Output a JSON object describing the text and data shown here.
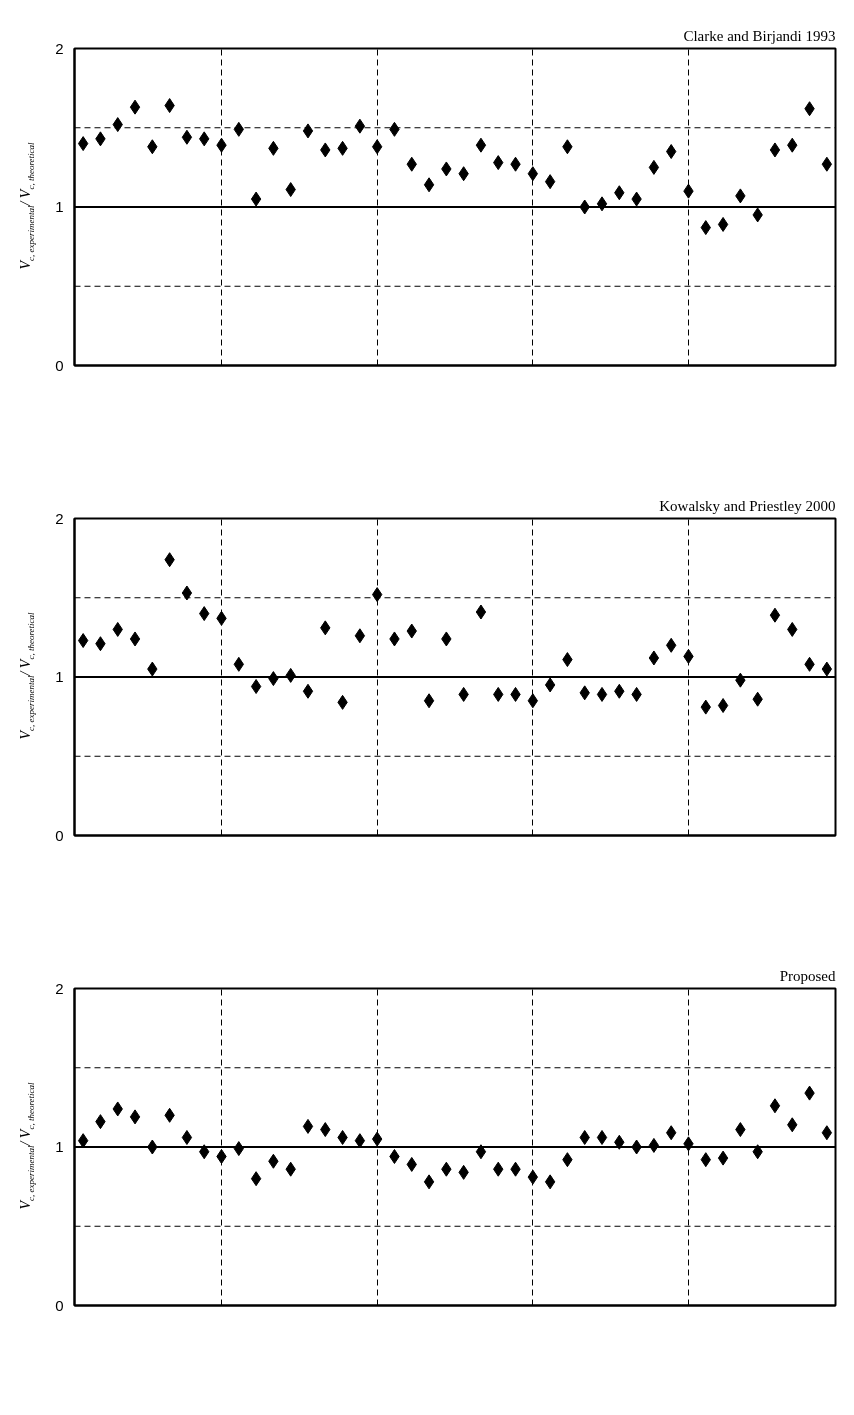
{
  "chart_data": [
    {
      "type": "scatter",
      "title": "Clarke and Birjandi 1993",
      "ylabel": "V$_{c, experimental}$/ V$_{c, theoretical}$",
      "color": "#000000",
      "marker": "diamond",
      "grid": true,
      "categories": [
        null,
        null,
        null,
        null,
        null,
        null,
        null,
        null,
        null,
        null,
        null,
        null,
        null,
        null,
        null,
        null,
        null,
        null,
        null,
        null,
        null,
        null,
        null,
        null,
        null,
        null,
        null,
        null,
        null,
        null,
        null,
        null,
        null,
        null,
        null,
        null,
        null,
        null,
        null,
        null,
        null,
        null,
        null,
        null
      ],
      "values": [
        1.4,
        1.43,
        1.52,
        1.63,
        1.38,
        1.64,
        1.44,
        1.43,
        1.39,
        1.49,
        1.05,
        1.37,
        1.11,
        1.48,
        1.36,
        1.37,
        1.51,
        1.38,
        1.49,
        1.27,
        1.14,
        1.24,
        1.21,
        1.39,
        1.28,
        1.27,
        1.21,
        1.16,
        1.38,
        1.0,
        1.02,
        1.09,
        1.05,
        1.25,
        1.35,
        1.1,
        0.87,
        0.89,
        1.07,
        0.95,
        1.36,
        1.39,
        1.62,
        1.27
      ],
      "ylim": [
        0,
        2
      ],
      "yticks": [
        0,
        1,
        2
      ],
      "ref_lines": [
        {
          "axis": "y",
          "value": 0.5,
          "label": null,
          "color": "#000000",
          "line_style": "dashed"
        },
        {
          "axis": "y",
          "value": 1,
          "label": null,
          "color": "#000000",
          "line_style": "solid"
        },
        {
          "axis": "y",
          "value": 1.5,
          "label": null,
          "color": "#000000",
          "line_style": "dashed"
        }
      ]
    },
    {
      "type": "scatter",
      "title": "Kowalsky and Priestley 2000",
      "ylabel": "V$_{c, experimental}$/ V$_{c, theoretical}$",
      "color": "#000000",
      "marker": "diamond",
      "grid": true,
      "categories": [
        null,
        null,
        null,
        null,
        null,
        null,
        null,
        null,
        null,
        null,
        null,
        null,
        null,
        null,
        null,
        null,
        null,
        null,
        null,
        null,
        null,
        null,
        null,
        null,
        null,
        null,
        null,
        null,
        null,
        null,
        null,
        null,
        null,
        null,
        null,
        null,
        null,
        null,
        null,
        null,
        null,
        null,
        null,
        null
      ],
      "values": [
        1.23,
        1.21,
        1.3,
        1.24,
        1.05,
        1.74,
        1.53,
        1.4,
        1.37,
        1.08,
        0.94,
        0.99,
        1.01,
        0.91,
        1.31,
        0.84,
        1.26,
        1.52,
        1.24,
        1.29,
        0.85,
        1.24,
        0.89,
        1.41,
        0.89,
        0.89,
        0.85,
        0.95,
        1.11,
        0.9,
        0.89,
        0.91,
        0.89,
        1.12,
        1.2,
        1.13,
        0.81,
        0.82,
        0.98,
        0.86,
        1.39,
        1.3,
        1.08,
        1.05
      ],
      "ylim": [
        0,
        2
      ],
      "yticks": [
        0,
        1,
        2
      ],
      "ref_lines": [
        {
          "axis": "y",
          "value": 0.5,
          "label": null,
          "color": "#000000",
          "line_style": "dashed"
        },
        {
          "axis": "y",
          "value": 1,
          "label": null,
          "color": "#000000",
          "line_style": "solid"
        },
        {
          "axis": "y",
          "value": 1.5,
          "label": null,
          "color": "#000000",
          "line_style": "dashed"
        }
      ]
    },
    {
      "type": "scatter",
      "title": "Proposed",
      "ylabel": "V$_{c, experimental}$/ V$_{c, theoretical}$",
      "color": "#000000",
      "marker": "diamond",
      "grid": true,
      "categories": [
        null,
        null,
        null,
        null,
        null,
        null,
        null,
        null,
        null,
        null,
        null,
        null,
        null,
        null,
        null,
        null,
        null,
        null,
        null,
        null,
        null,
        null,
        null,
        null,
        null,
        null,
        null,
        null,
        null,
        null,
        null,
        null,
        null,
        null,
        null,
        null,
        null,
        null,
        null,
        null,
        null,
        null,
        null,
        null
      ],
      "values": [
        1.04,
        1.16,
        1.24,
        1.19,
        1.0,
        1.2,
        1.06,
        0.97,
        0.94,
        0.99,
        0.8,
        0.91,
        0.86,
        1.13,
        1.11,
        1.06,
        1.04,
        1.05,
        0.94,
        0.89,
        0.78,
        0.86,
        0.84,
        0.97,
        0.86,
        0.86,
        0.81,
        0.78,
        0.92,
        1.06,
        1.06,
        1.03,
        1.0,
        1.01,
        1.09,
        1.02,
        0.92,
        0.93,
        1.11,
        0.97,
        1.26,
        1.14,
        1.34,
        1.09
      ],
      "ylim": [
        0,
        2
      ],
      "yticks": [
        0,
        1,
        2
      ],
      "ref_lines": [
        {
          "axis": "y",
          "value": 0.5,
          "label": null,
          "color": "#000000",
          "line_style": "dashed"
        },
        {
          "axis": "y",
          "value": 1,
          "label": null,
          "color": "#000000",
          "line_style": "solid"
        },
        {
          "axis": "y",
          "value": 1.5,
          "label": null,
          "color": "#000000",
          "line_style": "dashed"
        }
      ]
    }
  ]
}
